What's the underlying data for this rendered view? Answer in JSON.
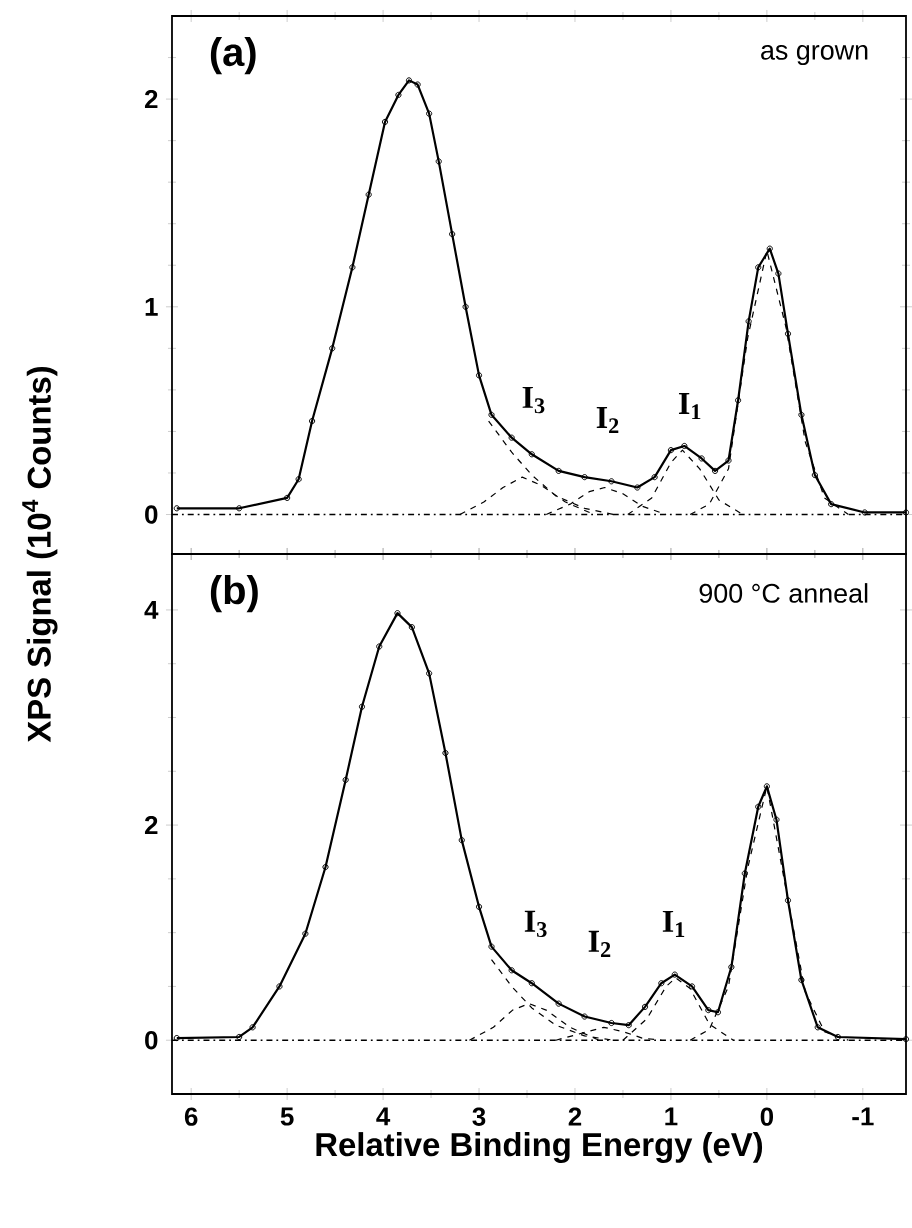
{
  "chart_data": [
    {
      "type": "line",
      "title": "(a)",
      "subtitle": "as grown",
      "xlim": [
        6.2,
        -1.45
      ],
      "ylim": [
        -0.19,
        2.4
      ],
      "xticks": [
        6,
        {
          "value": 5.5,
          "label": null
        },
        5,
        {
          "value": 4.5,
          "label": null
        },
        4,
        {
          "value": 3.5,
          "label": null
        },
        3,
        {
          "value": 2.5,
          "label": null
        },
        2,
        {
          "value": 1.5,
          "label": null
        },
        1,
        {
          "value": 0.5,
          "label": null
        },
        0,
        {
          "value": -0.5,
          "label": null
        },
        -1
      ],
      "yticks": [
        0,
        {
          "value": 0.2,
          "label": null
        },
        {
          "value": 0.4,
          "label": null
        },
        {
          "value": 0.6,
          "label": null
        },
        {
          "value": 0.8,
          "label": null
        },
        1,
        {
          "value": 1.2,
          "label": null
        },
        {
          "value": 1.4,
          "label": null
        },
        {
          "value": 1.6,
          "label": null
        },
        {
          "value": 1.8,
          "label": null
        },
        2,
        {
          "value": 2.2,
          "label": null
        }
      ],
      "tick_labels": "y",
      "series": [
        {
          "color": "#000000",
          "marker": "circle",
          "line_style": "solid",
          "x": [
            6.15,
            5.5,
            5.0,
            4.88,
            4.74,
            4.53,
            4.32,
            4.15,
            3.98,
            3.84,
            3.73,
            3.64,
            3.52,
            3.42,
            3.28,
            3.14,
            3.0,
            2.87,
            2.66,
            2.45,
            2.17,
            1.9,
            1.62,
            1.35,
            1.17,
            1.0,
            0.86,
            0.68,
            0.54,
            0.4,
            0.3,
            0.19,
            0.09,
            -0.03,
            -0.12,
            -0.22,
            -0.36,
            -0.5,
            -0.67,
            -1.02,
            -1.45
          ],
          "values": [
            0.03,
            0.03,
            0.08,
            0.17,
            0.45,
            0.8,
            1.19,
            1.54,
            1.89,
            2.02,
            2.09,
            2.07,
            1.93,
            1.7,
            1.35,
            1.0,
            0.67,
            0.48,
            0.37,
            0.29,
            0.21,
            0.18,
            0.16,
            0.13,
            0.18,
            0.31,
            0.33,
            0.27,
            0.21,
            0.26,
            0.55,
            0.93,
            1.19,
            1.28,
            1.16,
            0.87,
            0.48,
            0.19,
            0.05,
            0.01,
            0.01
          ]
        },
        {
          "color": "#000000",
          "marker": "none",
          "line_style": "dashed",
          "x": [
            2.9,
            2.66,
            2.45,
            2.2,
            1.9,
            1.6
          ],
          "values": [
            0.45,
            0.3,
            0.19,
            0.09,
            0.03,
            0.0
          ]
        },
        {
          "color": "#000000",
          "marker": "none",
          "line_style": "dashed",
          "x": [
            3.2,
            2.95,
            2.75,
            2.55,
            2.35,
            2.1,
            1.8
          ],
          "values": [
            0.0,
            0.06,
            0.13,
            0.18,
            0.14,
            0.06,
            0.0
          ]
        },
        {
          "color": "#000000",
          "marker": "none",
          "line_style": "dashed",
          "x": [
            2.3,
            2.05,
            1.85,
            1.69,
            1.5,
            1.3,
            1.05
          ],
          "values": [
            0.0,
            0.05,
            0.11,
            0.13,
            0.1,
            0.04,
            0.0
          ]
        },
        {
          "color": "#000000",
          "marker": "none",
          "line_style": "dashed",
          "x": [
            1.45,
            1.2,
            1.0,
            0.88,
            0.7,
            0.5,
            0.25
          ],
          "values": [
            0.0,
            0.08,
            0.25,
            0.31,
            0.22,
            0.07,
            0.0
          ]
        },
        {
          "color": "#000000",
          "marker": "none",
          "line_style": "dashed",
          "x": [
            0.8,
            0.6,
            0.4,
            0.2,
            0.0,
            -0.2,
            -0.4,
            -0.6,
            -0.85
          ],
          "values": [
            0.0,
            0.05,
            0.22,
            0.85,
            1.27,
            0.9,
            0.35,
            0.08,
            0.0
          ]
        }
      ],
      "ref_lines": [
        {
          "axis": "y",
          "value": 0,
          "line_style": "dashdot"
        }
      ],
      "annotations": [
        "I$_{3}$",
        "I$_{2}$",
        "I$_{1}$"
      ]
    },
    {
      "type": "line",
      "title": "(b)",
      "subtitle": "900 °C anneal",
      "xlabel": "Relative Binding Energy (eV)",
      "ylabel": "XPS Signal (10$^{4}$ Counts)",
      "xlim": [
        6.2,
        -1.45
      ],
      "ylim": [
        -0.5,
        4.52
      ],
      "xticks": [
        6,
        {
          "value": 5.5,
          "label": null
        },
        5,
        {
          "value": 4.5,
          "label": null
        },
        4,
        {
          "value": 3.5,
          "label": null
        },
        3,
        {
          "value": 2.5,
          "label": null
        },
        2,
        {
          "value": 1.5,
          "label": null
        },
        1,
        {
          "value": 0.5,
          "label": null
        },
        0,
        {
          "value": -0.5,
          "label": null
        },
        -1
      ],
      "yticks": [
        0,
        {
          "value": 0.5,
          "label": null
        },
        {
          "value": 1,
          "label": null
        },
        {
          "value": 1.5,
          "label": null
        },
        2,
        {
          "value": 2.5,
          "label": null
        },
        {
          "value": 3,
          "label": null
        },
        {
          "value": 3.5,
          "label": null
        },
        4
      ],
      "series": [
        {
          "color": "#000000",
          "marker": "circle",
          "line_style": "solid",
          "x": [
            6.15,
            5.5,
            5.36,
            5.08,
            4.81,
            4.6,
            4.39,
            4.22,
            4.04,
            3.85,
            3.7,
            3.52,
            3.35,
            3.18,
            3.0,
            2.87,
            2.66,
            2.45,
            2.17,
            1.9,
            1.62,
            1.44,
            1.27,
            1.1,
            0.96,
            0.78,
            0.61,
            0.51,
            0.37,
            0.23,
            0.09,
            0.0,
            -0.1,
            -0.22,
            -0.36,
            -0.53,
            -0.74,
            -1.45
          ],
          "values": [
            0.02,
            0.03,
            0.12,
            0.5,
            0.99,
            1.61,
            2.42,
            3.1,
            3.66,
            3.97,
            3.84,
            3.41,
            2.67,
            1.86,
            1.24,
            0.87,
            0.65,
            0.53,
            0.34,
            0.22,
            0.16,
            0.14,
            0.31,
            0.53,
            0.61,
            0.5,
            0.28,
            0.26,
            0.68,
            1.55,
            2.17,
            2.36,
            2.05,
            1.3,
            0.56,
            0.12,
            0.03,
            0.01
          ]
        },
        {
          "color": "#000000",
          "marker": "none",
          "line_style": "dashed",
          "x": [
            2.87,
            2.66,
            2.45,
            2.2,
            1.9,
            1.6
          ],
          "values": [
            0.75,
            0.5,
            0.3,
            0.14,
            0.04,
            0.0
          ]
        },
        {
          "color": "#000000",
          "marker": "none",
          "line_style": "dashed",
          "x": [
            3.1,
            2.85,
            2.65,
            2.48,
            2.3,
            2.05,
            1.75
          ],
          "values": [
            0.0,
            0.12,
            0.28,
            0.34,
            0.28,
            0.12,
            0.0
          ]
        },
        {
          "color": "#000000",
          "marker": "none",
          "line_style": "dashed",
          "x": [
            2.2,
            1.95,
            1.7,
            1.5,
            1.3,
            1.1
          ],
          "values": [
            0.0,
            0.06,
            0.12,
            0.08,
            0.02,
            0.0
          ]
        },
        {
          "color": "#000000",
          "marker": "none",
          "line_style": "dashed",
          "x": [
            1.5,
            1.25,
            1.05,
            0.95,
            0.8,
            0.6,
            0.35
          ],
          "values": [
            0.0,
            0.2,
            0.5,
            0.58,
            0.48,
            0.15,
            0.0
          ]
        },
        {
          "color": "#000000",
          "marker": "none",
          "line_style": "dashed",
          "x": [
            0.8,
            0.6,
            0.4,
            0.2,
            0.0,
            -0.2,
            -0.4,
            -0.6,
            -0.85
          ],
          "values": [
            0.0,
            0.1,
            0.5,
            1.6,
            2.36,
            1.4,
            0.45,
            0.08,
            0.0
          ]
        }
      ],
      "ref_lines": [
        {
          "axis": "y",
          "value": 0,
          "line_style": "dashdot"
        }
      ],
      "annotations": [
        "I$_{3}$",
        "I$_{2}$",
        "I$_{1}$"
      ]
    }
  ]
}
